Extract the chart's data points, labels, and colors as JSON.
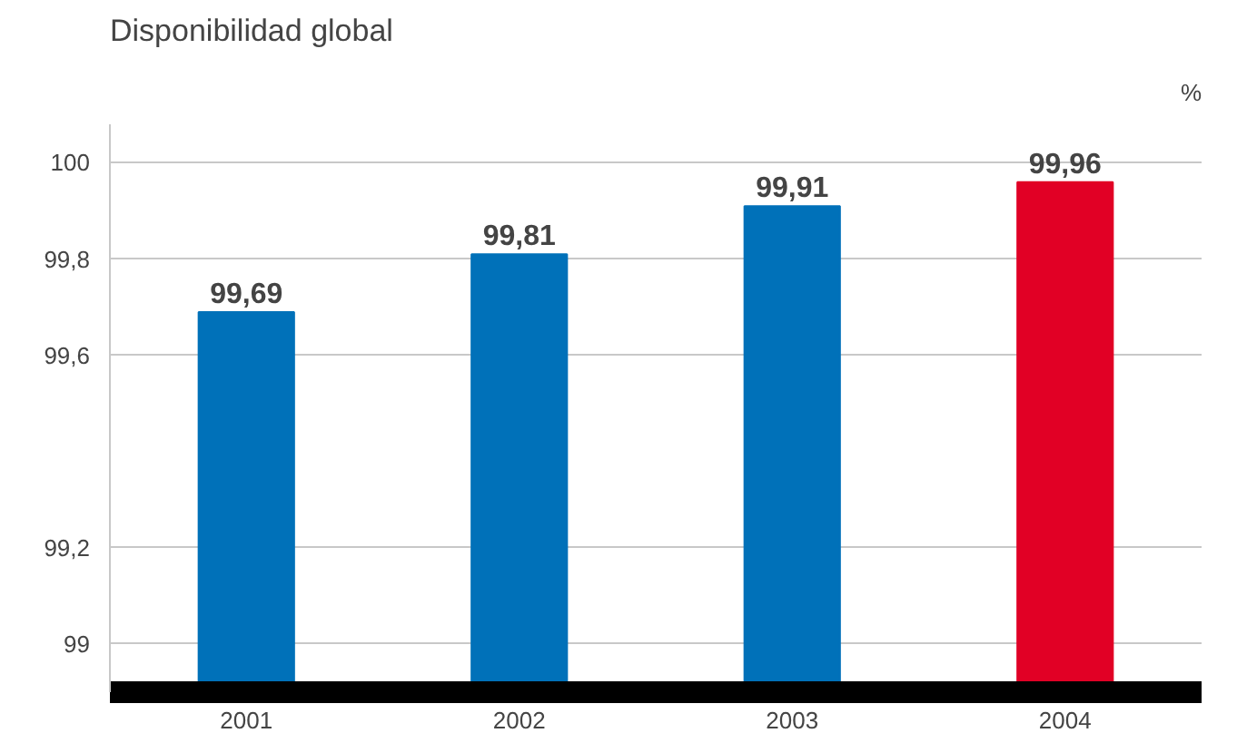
{
  "chart_data": {
    "type": "bar",
    "title": "Disponibilidad global",
    "annotations": [
      "%"
    ],
    "categories": [
      "2001",
      "2002",
      "2003",
      "2004"
    ],
    "values": [
      99.69,
      99.81,
      99.91,
      99.96
    ],
    "colors": [
      "#0071b9",
      "#0071b9",
      "#0071b9",
      "#e10025"
    ],
    "value_labels": [
      "99,69",
      "99,81",
      "99,91",
      "99,96"
    ],
    "ylim": [
      98.9,
      100.08
    ],
    "yticks": [
      {
        "value": 99,
        "label": "99"
      },
      {
        "value": 99.2,
        "label": "99,2"
      },
      {
        "value": 99.6,
        "label": "99,6"
      },
      {
        "value": 99.8,
        "label": "99,8"
      },
      {
        "value": 100,
        "label": "100"
      }
    ],
    "grid": "y"
  }
}
